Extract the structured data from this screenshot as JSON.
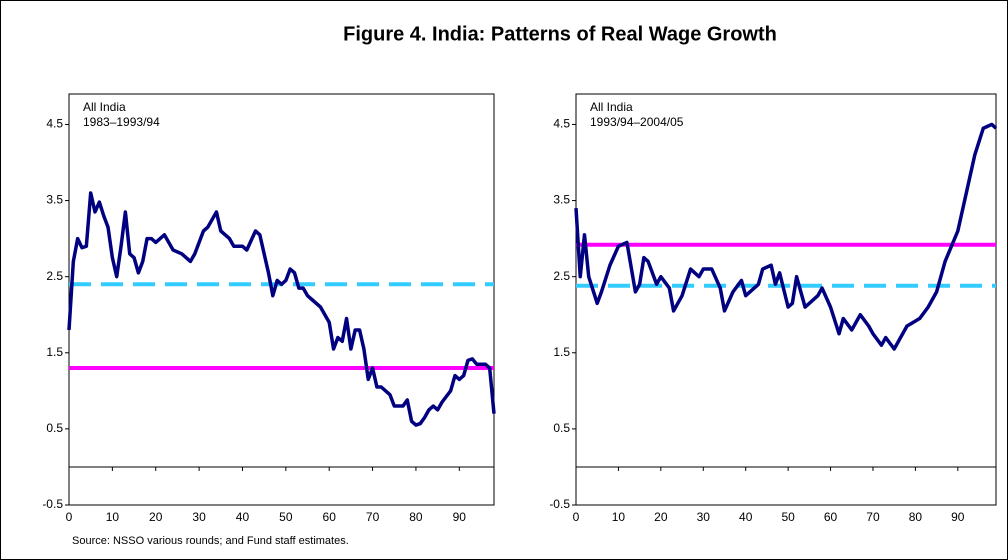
{
  "title": "Figure 4. India: Patterns of Real Wage Growth",
  "source": "Source: NSSO various rounds; and Fund staff estimates.",
  "chart_data": [
    {
      "type": "line",
      "annotation": [
        "All India",
        "1983–1993/94"
      ],
      "xlim": [
        0,
        98
      ],
      "ylim": [
        -0.5,
        4.9
      ],
      "xticks": [
        0,
        10,
        20,
        30,
        40,
        50,
        60,
        70,
        80,
        90
      ],
      "yticks": [
        -0.5,
        0.5,
        1.5,
        2.5,
        3.5,
        4.5
      ],
      "series": [
        {
          "color": "#000080",
          "x": [
            0,
            1,
            2,
            3,
            4,
            5,
            6,
            7,
            8,
            9,
            10,
            11,
            12,
            13,
            14,
            15,
            16,
            17,
            18,
            19,
            20,
            22,
            24,
            26,
            28,
            29,
            31,
            32,
            34,
            35,
            37,
            38,
            40,
            41,
            43,
            44,
            45,
            46,
            47,
            48,
            49,
            50,
            51,
            52,
            53,
            54,
            55,
            56,
            58,
            60,
            61,
            62,
            63,
            64,
            65,
            66,
            67,
            68,
            69,
            70,
            71,
            72,
            74,
            75,
            77,
            78,
            79,
            80,
            81,
            82,
            83,
            84,
            85,
            86,
            88,
            89,
            90,
            91,
            92,
            93,
            94,
            96,
            97,
            98
          ],
          "values": [
            1.8,
            2.7,
            3.0,
            2.88,
            2.9,
            3.6,
            3.35,
            3.48,
            3.3,
            3.15,
            2.75,
            2.5,
            2.9,
            3.35,
            2.8,
            2.75,
            2.55,
            2.7,
            3.0,
            3.0,
            2.95,
            3.05,
            2.85,
            2.8,
            2.7,
            2.8,
            3.1,
            3.15,
            3.35,
            3.1,
            3.0,
            2.9,
            2.9,
            2.85,
            3.1,
            3.05,
            2.8,
            2.55,
            2.25,
            2.45,
            2.4,
            2.45,
            2.6,
            2.55,
            2.35,
            2.35,
            2.25,
            2.2,
            2.1,
            1.9,
            1.55,
            1.7,
            1.65,
            1.95,
            1.55,
            1.8,
            1.8,
            1.55,
            1.15,
            1.3,
            1.05,
            1.05,
            0.95,
            0.8,
            0.8,
            0.88,
            0.6,
            0.55,
            0.57,
            0.65,
            0.75,
            0.8,
            0.75,
            0.85,
            1.0,
            1.2,
            1.15,
            1.2,
            1.4,
            1.42,
            1.35,
            1.35,
            1.3,
            0.7
          ]
        }
      ],
      "reference_lines": [
        {
          "value": 2.4,
          "color": "#33ccff",
          "style": "dashed"
        },
        {
          "value": 1.3,
          "color": "#ff00ff",
          "style": "solid"
        }
      ]
    },
    {
      "type": "line",
      "annotation": [
        "All India",
        "1993/94–2004/05"
      ],
      "xlim": [
        0,
        99
      ],
      "ylim": [
        -0.5,
        4.9
      ],
      "xticks": [
        0,
        10,
        20,
        30,
        40,
        50,
        60,
        70,
        80,
        90
      ],
      "yticks": [
        -0.5,
        0.5,
        1.5,
        2.5,
        3.5,
        4.5
      ],
      "series": [
        {
          "color": "#000080",
          "x": [
            0,
            1,
            2,
            3,
            5,
            6,
            8,
            10,
            12,
            14,
            15,
            16,
            17,
            19,
            20,
            22,
            23,
            25,
            27,
            29,
            30,
            32,
            34,
            35,
            37,
            39,
            40,
            43,
            44,
            46,
            47,
            48,
            50,
            51,
            52,
            54,
            55,
            57,
            58,
            60,
            62,
            63,
            65,
            67,
            69,
            70,
            72,
            73,
            75,
            78,
            81,
            83,
            85,
            87,
            90,
            92,
            94,
            96,
            98,
            99
          ],
          "values": [
            3.4,
            2.5,
            3.05,
            2.5,
            2.15,
            2.3,
            2.65,
            2.9,
            2.95,
            2.3,
            2.4,
            2.75,
            2.7,
            2.4,
            2.5,
            2.35,
            2.05,
            2.25,
            2.6,
            2.5,
            2.6,
            2.6,
            2.35,
            2.05,
            2.3,
            2.45,
            2.25,
            2.4,
            2.6,
            2.65,
            2.4,
            2.55,
            2.1,
            2.15,
            2.5,
            2.1,
            2.15,
            2.25,
            2.35,
            2.1,
            1.75,
            1.95,
            1.8,
            2.0,
            1.85,
            1.75,
            1.6,
            1.7,
            1.55,
            1.85,
            1.95,
            2.1,
            2.3,
            2.7,
            3.1,
            3.6,
            4.1,
            4.45,
            4.5,
            4.45
          ]
        }
      ],
      "reference_lines": [
        {
          "value": 2.92,
          "color": "#ff00ff",
          "style": "solid"
        },
        {
          "value": 2.38,
          "color": "#33ccff",
          "style": "dashed"
        }
      ]
    }
  ]
}
